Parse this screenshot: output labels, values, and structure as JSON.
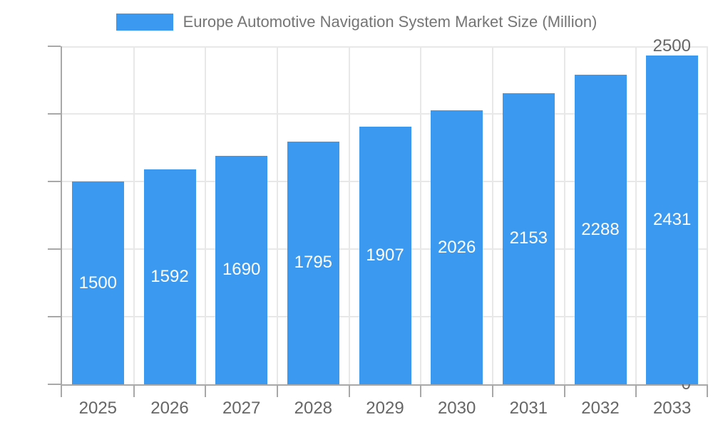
{
  "legend": {
    "label": "Europe Automotive Navigation System Market Size (Million)"
  },
  "colors": {
    "bar": "#3B99F0",
    "grid": "#E8E8E8",
    "axis": "#A8A8A8",
    "tick_text": "#666666",
    "legend_text": "#757575",
    "value_text": "#FFFFFF",
    "background": "#FFFFFF"
  },
  "chart_data": {
    "type": "bar",
    "title": "Europe Automotive Navigation System Market Size (Million)",
    "categories": [
      "2025",
      "2026",
      "2027",
      "2028",
      "2029",
      "2030",
      "2031",
      "2032",
      "2033"
    ],
    "values": [
      1500,
      1592,
      1690,
      1795,
      1907,
      2026,
      2153,
      2288,
      2431
    ],
    "series": [
      {
        "name": "Europe Automotive Navigation System Market Size (Million)",
        "values": [
          1500,
          1592,
          1690,
          1795,
          1907,
          2026,
          2153,
          2288,
          2431
        ]
      }
    ],
    "xlabel": "",
    "ylabel": "",
    "ylim": [
      0,
      2500
    ],
    "yticks": [
      0,
      500,
      1000,
      1500,
      2000,
      2500
    ],
    "grid": true,
    "legend_position": "top-center",
    "bar_labels": "inside-middle"
  }
}
